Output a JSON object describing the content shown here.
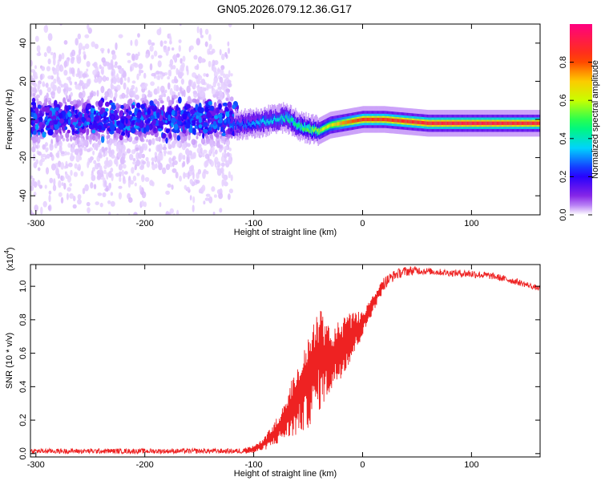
{
  "title": "GN05.2026.079.12.36.G17",
  "chart_data": [
    {
      "type": "heatmap",
      "xlabel": "Height of straight line (km)",
      "ylabel": "Frequency (Hz)",
      "xlim": [
        -305,
        163
      ],
      "ylim": [
        -50,
        50
      ],
      "xticks": [
        -300,
        -200,
        -100,
        0,
        100
      ],
      "xtick_labels": [
        "-300",
        "-200",
        "-100",
        "0",
        "100"
      ],
      "yticks": [
        -40,
        -20,
        0,
        20,
        40
      ],
      "ytick_labels": [
        "-40",
        "-20",
        "0",
        "20",
        "40"
      ],
      "colorbar": {
        "label": "Normalized spectral amplitude",
        "range": [
          0,
          1
        ],
        "ticks": [
          0.0,
          0.2,
          0.4,
          0.6,
          0.8
        ],
        "tick_labels": [
          "0.0",
          "0.2",
          "0.4",
          "0.6",
          "0.8"
        ],
        "colors": [
          "#ffffff",
          "#8000ff",
          "#0000ff",
          "#00ffff",
          "#00ff00",
          "#ffff00",
          "#ff8000",
          "#ff0000",
          "#ff0080"
        ]
      },
      "track": {
        "x": [
          -115,
          -100,
          -90,
          -80,
          -70,
          -60,
          -50,
          -40,
          -30,
          -20,
          -10,
          0,
          20,
          40,
          60,
          80,
          100,
          120,
          140,
          163
        ],
        "freq": [
          -3,
          -2,
          -1,
          0,
          1,
          -3,
          -5,
          -6,
          -3,
          -2,
          -1,
          0,
          0,
          -1,
          -2,
          -2,
          -2,
          -2,
          -2,
          -2
        ],
        "peak_amplitude": [
          0.3,
          0.35,
          0.4,
          0.4,
          0.45,
          0.5,
          0.55,
          0.6,
          0.65,
          0.75,
          0.8,
          0.85,
          0.85,
          0.88,
          0.9,
          0.92,
          0.93,
          0.92,
          0.9,
          0.9
        ]
      },
      "grid": false
    },
    {
      "type": "line",
      "xlabel": "Height of straight line (km)",
      "ylabel": "SNR (10 * v/v)",
      "scale_label_base": "(x10",
      "scale_label_exp": "4",
      "scale_label_close": ")",
      "xlim": [
        -305,
        163
      ],
      "ylim": [
        -0.02,
        1.13
      ],
      "xticks": [
        -300,
        -200,
        -100,
        0,
        100
      ],
      "xtick_labels": [
        "-300",
        "-200",
        "-100",
        "0",
        "100"
      ],
      "yticks": [
        0.0,
        0.2,
        0.4,
        0.6,
        0.8,
        1.0
      ],
      "ytick_labels": [
        "0.0",
        "0.2",
        "0.4",
        "0.6",
        "0.8",
        "1.0"
      ],
      "color": "#ee2222",
      "envelope": {
        "x": [
          -305,
          -130,
          -110,
          -100,
          -90,
          -80,
          -70,
          -60,
          -50,
          -40,
          -30,
          -20,
          -10,
          0,
          10,
          20,
          30,
          40,
          50,
          60,
          80,
          100,
          120,
          140,
          163
        ],
        "low": [
          0.0,
          0.0,
          0.0,
          0.0,
          0.02,
          0.05,
          0.08,
          0.1,
          0.15,
          0.25,
          0.35,
          0.45,
          0.55,
          0.7,
          0.85,
          0.98,
          1.04,
          1.06,
          1.07,
          1.07,
          1.06,
          1.05,
          1.04,
          1.01,
          0.97
        ],
        "high": [
          0.03,
          0.03,
          0.03,
          0.05,
          0.1,
          0.2,
          0.35,
          0.55,
          0.7,
          0.9,
          0.75,
          0.8,
          0.85,
          0.85,
          0.95,
          1.06,
          1.1,
          1.12,
          1.12,
          1.11,
          1.1,
          1.1,
          1.08,
          1.05,
          1.0
        ]
      },
      "grid": false
    }
  ]
}
